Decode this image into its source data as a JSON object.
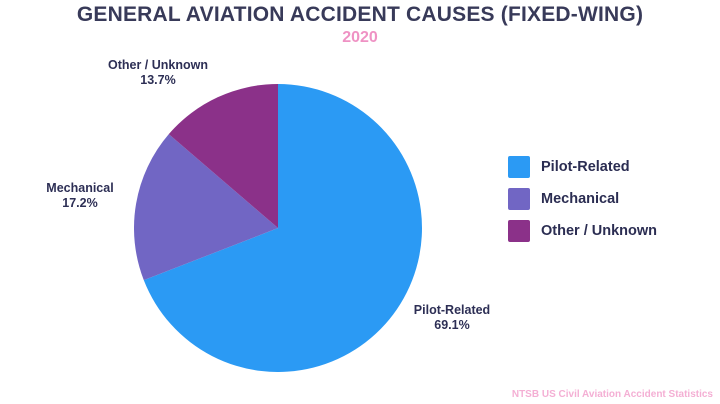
{
  "page": {
    "title": "GENERAL AVIATION ACCIDENT CAUSES (FIXED-WING)",
    "subtitle": "2020",
    "source": "NTSB US Civil Aviation Accident Statistics"
  },
  "colors": {
    "background": "#FFFFFF",
    "title_text": "#383A59",
    "subtitle_text": "#EF92C4",
    "source_text": "#F4AFD4",
    "label_text": "#2D2F55"
  },
  "chart_data": {
    "type": "pie",
    "title": "GENERAL AVIATION ACCIDENT CAUSES (FIXED-WING)",
    "subtitle": "2020",
    "source": "NTSB US Civil Aviation Accident Statistics",
    "start_angle": "top",
    "direction": "clockwise",
    "legend_position": "right",
    "slices": [
      {
        "label": "Pilot-Related",
        "value": 69.1,
        "pct_label": "69.1%",
        "color": "#2B9AF4"
      },
      {
        "label": "Mechanical",
        "value": 17.2,
        "pct_label": "17.2%",
        "color": "#7166C4"
      },
      {
        "label": "Other / Unknown",
        "value": 13.7,
        "pct_label": "13.7%",
        "color": "#8B3189"
      }
    ]
  }
}
